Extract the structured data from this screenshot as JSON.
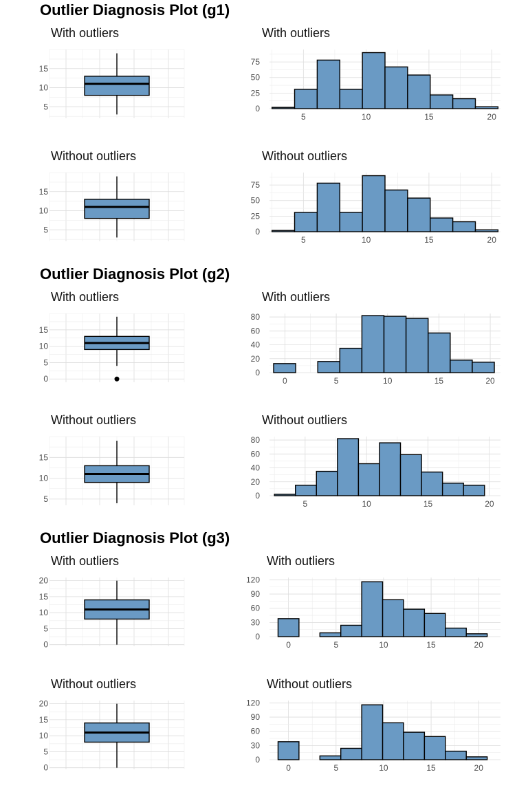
{
  "colors": {
    "fill": "#6a9ac4",
    "outline": "#000000",
    "grid": "#dcdcdc",
    "text": "#4d4d4d"
  },
  "chart_data": [
    {
      "title": "Outlier Diagnosis Plot (g1)",
      "panels": [
        {
          "type": "box",
          "title": "With outliers",
          "ylim": [
            2,
            20
          ],
          "yticks": [
            5,
            10,
            15
          ],
          "whisker_low": 3,
          "q1": 8,
          "median": 11,
          "q3": 13,
          "whisker_high": 19,
          "outliers": []
        },
        {
          "type": "bar",
          "title": "With outliers",
          "xlim": [
            2.3,
            20.7
          ],
          "ylim": [
            0,
            95
          ],
          "xticks": [
            5,
            10,
            15,
            20
          ],
          "yticks": [
            0,
            25,
            50,
            75
          ],
          "bins": [
            [
              2.5,
              4.3
            ],
            [
              4.3,
              6.1
            ],
            [
              6.1,
              7.9
            ],
            [
              7.9,
              9.7
            ],
            [
              9.7,
              11.5
            ],
            [
              11.5,
              13.3
            ],
            [
              13.3,
              15.1
            ],
            [
              15.1,
              16.9
            ],
            [
              16.9,
              18.7
            ],
            [
              18.7,
              20.5
            ]
          ],
          "values": [
            2,
            31,
            78,
            31,
            90,
            67,
            54,
            22,
            16,
            3
          ]
        },
        {
          "type": "box",
          "title": "Without outliers",
          "ylim": [
            2,
            20
          ],
          "yticks": [
            5,
            10,
            15
          ],
          "whisker_low": 3,
          "q1": 8,
          "median": 11,
          "q3": 13,
          "whisker_high": 19,
          "outliers": []
        },
        {
          "type": "bar",
          "title": "Without outliers",
          "xlim": [
            2.3,
            20.7
          ],
          "ylim": [
            0,
            95
          ],
          "xticks": [
            5,
            10,
            15,
            20
          ],
          "yticks": [
            0,
            25,
            50,
            75
          ],
          "bins": [
            [
              2.5,
              4.3
            ],
            [
              4.3,
              6.1
            ],
            [
              6.1,
              7.9
            ],
            [
              7.9,
              9.7
            ],
            [
              9.7,
              11.5
            ],
            [
              11.5,
              13.3
            ],
            [
              13.3,
              15.1
            ],
            [
              15.1,
              16.9
            ],
            [
              16.9,
              18.7
            ],
            [
              18.7,
              20.5
            ]
          ],
          "values": [
            2,
            31,
            78,
            31,
            90,
            67,
            54,
            22,
            16,
            3
          ]
        }
      ]
    },
    {
      "title": "Outlier Diagnosis Plot (g2)",
      "panels": [
        {
          "type": "box",
          "title": "With outliers",
          "ylim": [
            -1,
            20
          ],
          "yticks": [
            0,
            5,
            10,
            15
          ],
          "whisker_low": 4,
          "q1": 9,
          "median": 11,
          "q3": 13,
          "whisker_high": 19,
          "outliers": [
            0
          ]
        },
        {
          "type": "bar",
          "title": "With outliers",
          "xlim": [
            -1.5,
            21
          ],
          "ylim": [
            0,
            85
          ],
          "xticks": [
            0,
            5,
            10,
            15,
            20
          ],
          "yticks": [
            0,
            20,
            40,
            60,
            80
          ],
          "bins": [
            [
              -1.1,
              1.05
            ],
            [
              1.05,
              3.2
            ],
            [
              3.2,
              5.35
            ],
            [
              5.35,
              7.5
            ],
            [
              7.5,
              9.65
            ],
            [
              9.65,
              11.8
            ],
            [
              11.8,
              13.95
            ],
            [
              13.95,
              16.1
            ],
            [
              16.1,
              18.25
            ],
            [
              18.25,
              20.4
            ]
          ],
          "values": [
            13,
            0,
            16,
            35,
            82,
            81,
            78,
            57,
            18,
            15
          ]
        },
        {
          "type": "box",
          "title": "Without outliers",
          "ylim": [
            3.5,
            20
          ],
          "yticks": [
            5,
            10,
            15
          ],
          "whisker_low": 4,
          "q1": 9,
          "median": 11,
          "q3": 13,
          "whisker_high": 19,
          "outliers": []
        },
        {
          "type": "bar",
          "title": "Without outliers",
          "xlim": [
            2.1,
            20.9
          ],
          "ylim": [
            0,
            85
          ],
          "xticks": [
            5,
            10,
            15,
            20
          ],
          "yticks": [
            0,
            20,
            40,
            60,
            80
          ],
          "bins": [
            [
              2.5,
              4.21
            ],
            [
              4.21,
              5.92
            ],
            [
              5.92,
              7.63
            ],
            [
              7.63,
              9.34
            ],
            [
              9.34,
              11.05
            ],
            [
              11.05,
              12.76
            ],
            [
              12.76,
              14.47
            ],
            [
              14.47,
              16.18
            ],
            [
              16.18,
              17.89
            ],
            [
              17.89,
              19.6
            ]
          ],
          "values": [
            2,
            15,
            35,
            82,
            46,
            76,
            59,
            34,
            18,
            15
          ]
        }
      ]
    },
    {
      "title": "Outlier Diagnosis Plot (g3)",
      "panels": [
        {
          "type": "box",
          "title": "With outliers",
          "ylim": [
            -0.5,
            21
          ],
          "yticks": [
            0,
            5,
            10,
            15,
            20
          ],
          "whisker_low": 0,
          "q1": 8,
          "median": 11,
          "q3": 14,
          "whisker_high": 20,
          "outliers": []
        },
        {
          "type": "bar",
          "title": "With outliers",
          "xlim": [
            -2,
            22.3
          ],
          "ylim": [
            0,
            125
          ],
          "xticks": [
            0,
            5,
            10,
            15,
            20
          ],
          "yticks": [
            0,
            30,
            60,
            90,
            120
          ],
          "bins": [
            [
              -1.1,
              1.1
            ],
            [
              1.1,
              3.3
            ],
            [
              3.3,
              5.5
            ],
            [
              5.5,
              7.7
            ],
            [
              7.7,
              9.9
            ],
            [
              9.9,
              12.1
            ],
            [
              12.1,
              14.3
            ],
            [
              14.3,
              16.5
            ],
            [
              16.5,
              18.7
            ],
            [
              18.7,
              20.9
            ]
          ],
          "values": [
            38,
            0,
            8,
            24,
            116,
            78,
            58,
            49,
            18,
            6
          ]
        },
        {
          "type": "box",
          "title": "Without outliers",
          "ylim": [
            -0.5,
            21
          ],
          "yticks": [
            0,
            5,
            10,
            15,
            20
          ],
          "whisker_low": 0,
          "q1": 8,
          "median": 11,
          "q3": 14,
          "whisker_high": 20,
          "outliers": []
        },
        {
          "type": "bar",
          "title": "Without outliers",
          "xlim": [
            -2,
            22.3
          ],
          "ylim": [
            0,
            125
          ],
          "xticks": [
            0,
            5,
            10,
            15,
            20
          ],
          "yticks": [
            0,
            30,
            60,
            90,
            120
          ],
          "bins": [
            [
              -1.1,
              1.1
            ],
            [
              1.1,
              3.3
            ],
            [
              3.3,
              5.5
            ],
            [
              5.5,
              7.7
            ],
            [
              7.7,
              9.9
            ],
            [
              9.9,
              12.1
            ],
            [
              12.1,
              14.3
            ],
            [
              14.3,
              16.5
            ],
            [
              16.5,
              18.7
            ],
            [
              18.7,
              20.9
            ]
          ],
          "values": [
            38,
            0,
            8,
            24,
            116,
            78,
            58,
            49,
            18,
            6
          ]
        }
      ]
    }
  ]
}
